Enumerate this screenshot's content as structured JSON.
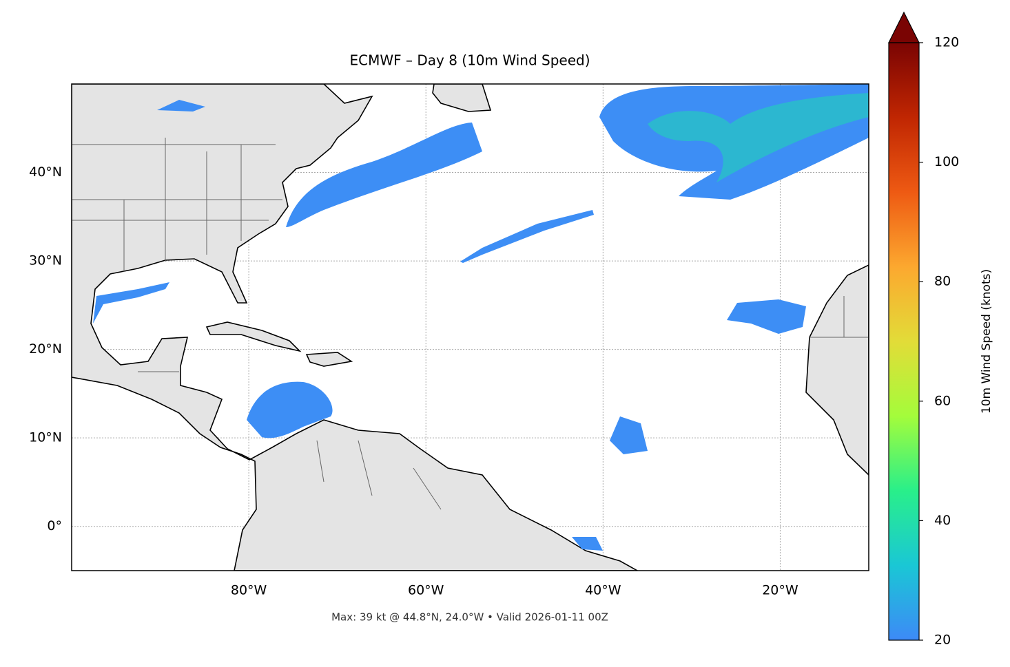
{
  "chart_data": {
    "type": "map",
    "title": "ECMWF – Day 8 (10m Wind Speed)",
    "subtitle": "Max: 39 kt @ 44.8°N, 24.0°W • Valid 2026-01-11 00Z",
    "xlim": [
      -100,
      -10
    ],
    "ylim": [
      -5,
      50
    ],
    "xticks": [
      {
        "value": -80,
        "label": "80°W"
      },
      {
        "value": -60,
        "label": "60°W"
      },
      {
        "value": -40,
        "label": "40°W"
      },
      {
        "value": -20,
        "label": "20°W"
      }
    ],
    "yticks": [
      {
        "value": 0,
        "label": "0°"
      },
      {
        "value": 10,
        "label": "10°N"
      },
      {
        "value": 20,
        "label": "20°N"
      },
      {
        "value": 30,
        "label": "30°N"
      },
      {
        "value": 40,
        "label": "40°N"
      }
    ],
    "grid": true,
    "colorbar": {
      "label": "10m Wind Speed (knots)",
      "lim": [
        20,
        120
      ],
      "ticks": [
        20,
        40,
        60,
        80,
        100,
        120
      ],
      "colors": [
        "#3d8af7",
        "#1ac7d5",
        "#29ef8a",
        "#a4fc3b",
        "#e2dc38",
        "#fca82f",
        "#ee5a13",
        "#c02602",
        "#7a0403"
      ]
    }
  }
}
